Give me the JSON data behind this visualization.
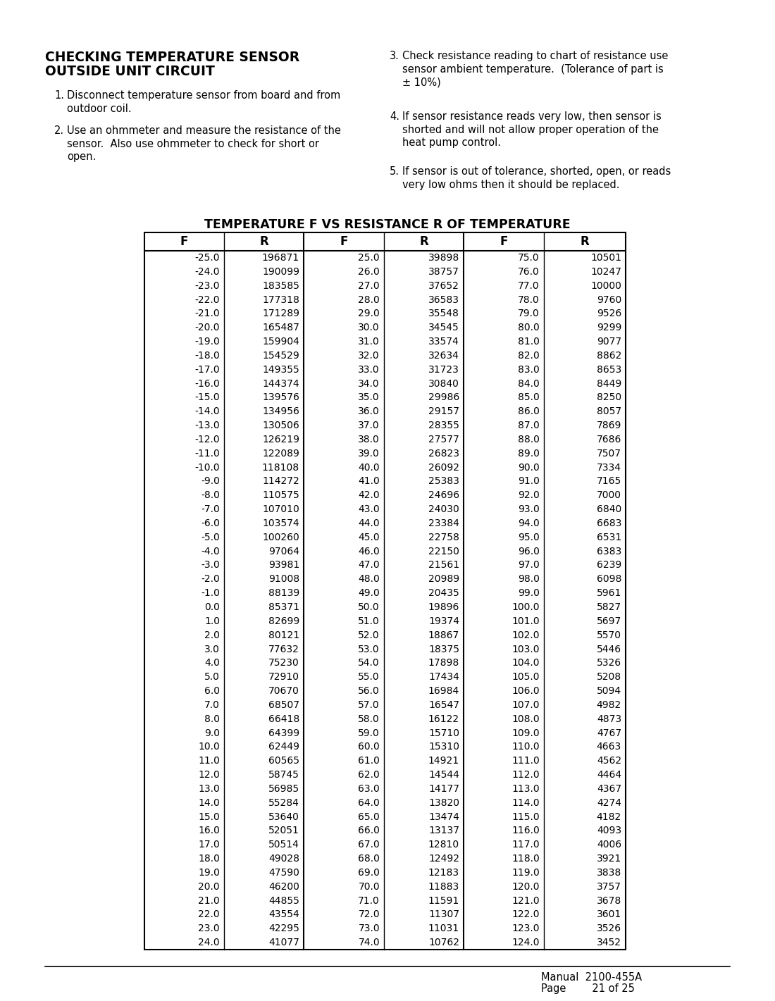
{
  "heading_line1": "CHECKING TEMPERATURE SENSOR",
  "heading_line2": "OUTSIDE UNIT CIRCUIT",
  "instr1_num": "1.",
  "instr1_text": "Disconnect temperature sensor from board and from\noutdoor coil.",
  "instr2_num": "2.",
  "instr2_text": "Use an ohmmeter and measure the resistance of the\nsensor.  Also use ohmmeter to check for short or\nopen.",
  "instr3_num": "3.",
  "instr3_text": "Check resistance reading to chart of resistance use\nsensor ambient temperature.  (Tolerance of part is\n± 10%)",
  "instr4_num": "4.",
  "instr4_text": "If sensor resistance reads very low, then sensor is\nshorted and will not allow proper operation of the\nheat pump control.",
  "instr5_num": "5.",
  "instr5_text": "If sensor is out of tolerance, shorted, open, or reads\nvery low ohms then it should be replaced.",
  "table_title": "TEMPERATURE F VS RESISTANCE R OF TEMPERATURE",
  "table_headers": [
    "F",
    "R",
    "F",
    "R",
    "F",
    "R"
  ],
  "data_col1_F": [
    -25.0,
    -24.0,
    -23.0,
    -22.0,
    -21.0,
    -20.0,
    -19.0,
    -18.0,
    -17.0,
    -16.0,
    -15.0,
    -14.0,
    -13.0,
    -12.0,
    -11.0,
    -10.0,
    -9.0,
    -8.0,
    -7.0,
    -6.0,
    -5.0,
    -4.0,
    -3.0,
    -2.0,
    -1.0,
    0.0,
    1.0,
    2.0,
    3.0,
    4.0,
    5.0,
    6.0,
    7.0,
    8.0,
    9.0,
    10.0,
    11.0,
    12.0,
    13.0,
    14.0,
    15.0,
    16.0,
    17.0,
    18.0,
    19.0,
    20.0,
    21.0,
    22.0,
    23.0,
    24.0
  ],
  "data_col1_R": [
    196871,
    190099,
    183585,
    177318,
    171289,
    165487,
    159904,
    154529,
    149355,
    144374,
    139576,
    134956,
    130506,
    126219,
    122089,
    118108,
    114272,
    110575,
    107010,
    103574,
    100260,
    97064,
    93981,
    91008,
    88139,
    85371,
    82699,
    80121,
    77632,
    75230,
    72910,
    70670,
    68507,
    66418,
    64399,
    62449,
    60565,
    58745,
    56985,
    55284,
    53640,
    52051,
    50514,
    49028,
    47590,
    46200,
    44855,
    43554,
    42295,
    41077
  ],
  "data_col2_F": [
    25.0,
    26.0,
    27.0,
    28.0,
    29.0,
    30.0,
    31.0,
    32.0,
    33.0,
    34.0,
    35.0,
    36.0,
    37.0,
    38.0,
    39.0,
    40.0,
    41.0,
    42.0,
    43.0,
    44.0,
    45.0,
    46.0,
    47.0,
    48.0,
    49.0,
    50.0,
    51.0,
    52.0,
    53.0,
    54.0,
    55.0,
    56.0,
    57.0,
    58.0,
    59.0,
    60.0,
    61.0,
    62.0,
    63.0,
    64.0,
    65.0,
    66.0,
    67.0,
    68.0,
    69.0,
    70.0,
    71.0,
    72.0,
    73.0,
    74.0
  ],
  "data_col2_R": [
    39898,
    38757,
    37652,
    36583,
    35548,
    34545,
    33574,
    32634,
    31723,
    30840,
    29986,
    29157,
    28355,
    27577,
    26823,
    26092,
    25383,
    24696,
    24030,
    23384,
    22758,
    22150,
    21561,
    20989,
    20435,
    19896,
    19374,
    18867,
    18375,
    17898,
    17434,
    16984,
    16547,
    16122,
    15710,
    15310,
    14921,
    14544,
    14177,
    13820,
    13474,
    13137,
    12810,
    12492,
    12183,
    11883,
    11591,
    11307,
    11031,
    10762
  ],
  "data_col3_F": [
    75.0,
    76.0,
    77.0,
    78.0,
    79.0,
    80.0,
    81.0,
    82.0,
    83.0,
    84.0,
    85.0,
    86.0,
    87.0,
    88.0,
    89.0,
    90.0,
    91.0,
    92.0,
    93.0,
    94.0,
    95.0,
    96.0,
    97.0,
    98.0,
    99.0,
    100.0,
    101.0,
    102.0,
    103.0,
    104.0,
    105.0,
    106.0,
    107.0,
    108.0,
    109.0,
    110.0,
    111.0,
    112.0,
    113.0,
    114.0,
    115.0,
    116.0,
    117.0,
    118.0,
    119.0,
    120.0,
    121.0,
    122.0,
    123.0,
    124.0
  ],
  "data_col3_R": [
    10501,
    10247,
    10000,
    9760,
    9526,
    9299,
    9077,
    8862,
    8653,
    8449,
    8250,
    8057,
    7869,
    7686,
    7507,
    7334,
    7165,
    7000,
    6840,
    6683,
    6531,
    6383,
    6239,
    6098,
    5961,
    5827,
    5697,
    5570,
    5446,
    5326,
    5208,
    5094,
    4982,
    4873,
    4767,
    4663,
    4562,
    4464,
    4367,
    4274,
    4182,
    4093,
    4006,
    3921,
    3838,
    3757,
    3678,
    3601,
    3526,
    3452
  ],
  "footer_manual": "Manual  2100-455A",
  "footer_page": "Page        21 of 25",
  "bg": "#ffffff",
  "fg": "#000000"
}
